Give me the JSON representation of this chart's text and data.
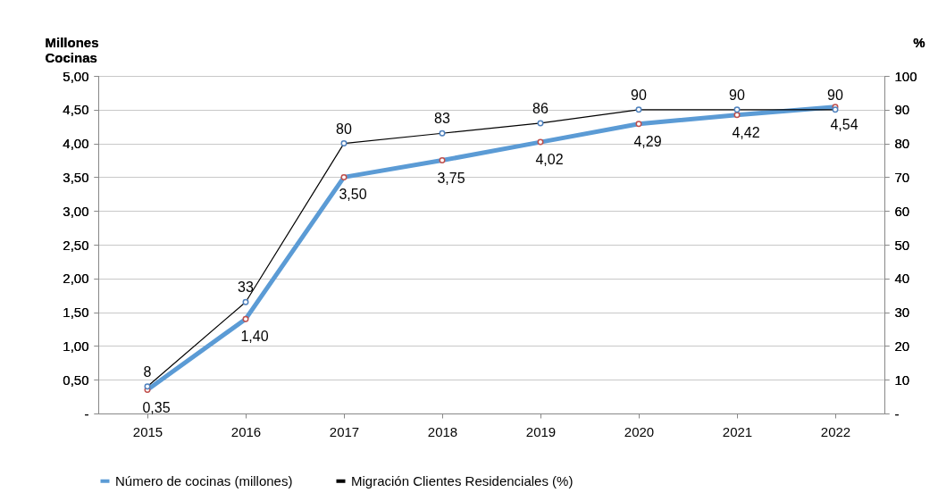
{
  "chart_data": {
    "type": "line",
    "ylabel": "Millones Cocinas",
    "y2label": "%",
    "categories": [
      "2015",
      "2016",
      "2017",
      "2018",
      "2019",
      "2020",
      "2021",
      "2022"
    ],
    "series": [
      {
        "name": "Número de cocinas (millones)",
        "color": "#5b9bd5",
        "values": [
          0.35,
          1.4,
          3.5,
          3.75,
          4.02,
          4.29,
          4.42,
          4.54
        ],
        "value_labels": [
          "0,35",
          "1,40",
          "3,50",
          "3,75",
          "4,02",
          "4,29",
          "4,42",
          "4,54"
        ]
      },
      {
        "name": "Migración Clientes Residenciales (%)",
        "color": "#000000",
        "axis": "y2",
        "values": [
          8,
          33,
          80,
          83,
          86,
          90,
          90,
          90
        ],
        "value_labels": [
          "8",
          "33",
          "80",
          "83",
          "86",
          "90",
          "90",
          "90"
        ]
      }
    ],
    "ylim": [
      0,
      5
    ],
    "yticks": [
      {
        "value": 0,
        "label": "-"
      },
      {
        "value": 0.5,
        "label": "0,50"
      },
      {
        "value": 1,
        "label": "1,00"
      },
      {
        "value": 1.5,
        "label": "1,50"
      },
      {
        "value": 2,
        "label": "2,00"
      },
      {
        "value": 2.5,
        "label": "2,50"
      },
      {
        "value": 3,
        "label": "3,00"
      },
      {
        "value": 3.5,
        "label": "3,50"
      },
      {
        "value": 4,
        "label": "4,00"
      },
      {
        "value": 4.5,
        "label": "4,50"
      },
      {
        "value": 5,
        "label": "5,00"
      }
    ],
    "y2lim": [
      0,
      100
    ],
    "y2ticks": [
      {
        "value": 0,
        "label": "-"
      },
      10,
      20,
      30,
      40,
      50,
      60,
      70,
      80,
      90,
      100
    ],
    "grid": "y",
    "legend": "bottom",
    "marker": "circle",
    "line_style": "solid"
  }
}
